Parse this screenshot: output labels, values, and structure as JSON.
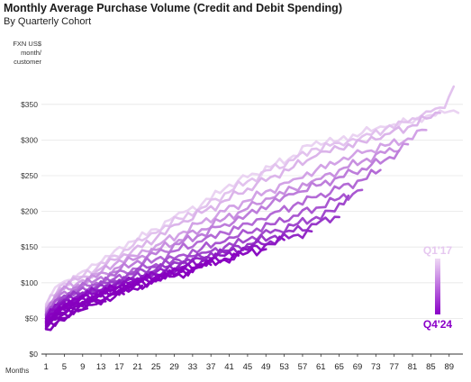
{
  "chart_data": {
    "type": "line",
    "title": "Monthly Average Purchase Volume (Credit and Debit Spending)",
    "subtitle": "By Quarterly Cohort",
    "ylabel_lines": [
      "FXN US$",
      "month/",
      "customer"
    ],
    "xlabel": "Months",
    "yticks": [
      "$0",
      "$50",
      "$100",
      "$150",
      "$200",
      "$250",
      "$300",
      "$350"
    ],
    "ytick_values": [
      0,
      50,
      100,
      150,
      200,
      250,
      300,
      350
    ],
    "xticks": [
      "1",
      "5",
      "9",
      "13",
      "17",
      "21",
      "25",
      "29",
      "33",
      "37",
      "41",
      "45",
      "49",
      "53",
      "57",
      "61",
      "65",
      "69",
      "73",
      "77",
      "81",
      "85",
      "89"
    ],
    "xtick_values": [
      1,
      5,
      9,
      13,
      17,
      21,
      25,
      29,
      33,
      37,
      41,
      45,
      49,
      53,
      57,
      61,
      65,
      69,
      73,
      77,
      81,
      85,
      89
    ],
    "xlim": [
      0,
      92
    ],
    "ylim": [
      0,
      375
    ],
    "legend": {
      "top_label": "Q1'17",
      "bottom_label": "Q4'24",
      "top_color": "#e6c8f0",
      "bottom_color": "#8a00c8",
      "placement": "right"
    },
    "series": [
      {
        "color": "#ead3f2",
        "points": [
          [
            1,
            70
          ],
          [
            4,
            98
          ],
          [
            8,
            112
          ],
          [
            12,
            125
          ],
          [
            16,
            145
          ],
          [
            20,
            158
          ],
          [
            25,
            175
          ],
          [
            30,
            198
          ],
          [
            35,
            210
          ],
          [
            40,
            232
          ],
          [
            45,
            248
          ],
          [
            50,
            262
          ],
          [
            55,
            278
          ],
          [
            60,
            298
          ],
          [
            65,
            300
          ],
          [
            70,
            310
          ],
          [
            75,
            318
          ],
          [
            80,
            325
          ],
          [
            85,
            335
          ],
          [
            89,
            340
          ],
          [
            91,
            338
          ]
        ]
      },
      {
        "color": "#e2c2ee",
        "points": [
          [
            1,
            68
          ],
          [
            4,
            95
          ],
          [
            8,
            108
          ],
          [
            12,
            120
          ],
          [
            16,
            138
          ],
          [
            20,
            152
          ],
          [
            25,
            170
          ],
          [
            30,
            190
          ],
          [
            35,
            205
          ],
          [
            40,
            225
          ],
          [
            45,
            242
          ],
          [
            50,
            258
          ],
          [
            55,
            272
          ],
          [
            60,
            288
          ],
          [
            65,
            296
          ],
          [
            70,
            305
          ],
          [
            75,
            315
          ],
          [
            80,
            325
          ],
          [
            84,
            340
          ],
          [
            88,
            345
          ],
          [
            90,
            375
          ]
        ]
      },
      {
        "color": "#dbb4ea",
        "points": [
          [
            1,
            66
          ],
          [
            4,
            92
          ],
          [
            8,
            104
          ],
          [
            12,
            116
          ],
          [
            16,
            132
          ],
          [
            20,
            146
          ],
          [
            25,
            162
          ],
          [
            30,
            182
          ],
          [
            35,
            198
          ],
          [
            40,
            215
          ],
          [
            45,
            232
          ],
          [
            50,
            248
          ],
          [
            55,
            262
          ],
          [
            60,
            278
          ],
          [
            65,
            288
          ],
          [
            70,
            298
          ],
          [
            75,
            308
          ],
          [
            80,
            318
          ],
          [
            84,
            330
          ],
          [
            87,
            338
          ]
        ]
      },
      {
        "color": "#d2a2e6",
        "points": [
          [
            1,
            64
          ],
          [
            4,
            89
          ],
          [
            8,
            100
          ],
          [
            12,
            112
          ],
          [
            16,
            126
          ],
          [
            20,
            138
          ],
          [
            25,
            152
          ],
          [
            30,
            168
          ],
          [
            35,
            184
          ],
          [
            40,
            200
          ],
          [
            45,
            215
          ],
          [
            50,
            230
          ],
          [
            55,
            245
          ],
          [
            60,
            258
          ],
          [
            65,
            270
          ],
          [
            70,
            282
          ],
          [
            75,
            292
          ],
          [
            80,
            302
          ],
          [
            84,
            314
          ]
        ]
      },
      {
        "color": "#c890e0",
        "points": [
          [
            1,
            62
          ],
          [
            4,
            86
          ],
          [
            8,
            97
          ],
          [
            12,
            108
          ],
          [
            16,
            120
          ],
          [
            20,
            132
          ],
          [
            25,
            146
          ],
          [
            30,
            160
          ],
          [
            35,
            175
          ],
          [
            40,
            190
          ],
          [
            45,
            204
          ],
          [
            50,
            218
          ],
          [
            55,
            232
          ],
          [
            60,
            245
          ],
          [
            65,
            258
          ],
          [
            70,
            270
          ],
          [
            75,
            282
          ],
          [
            80,
            294
          ]
        ]
      },
      {
        "color": "#bd7ddb",
        "points": [
          [
            1,
            60
          ],
          [
            4,
            83
          ],
          [
            8,
            94
          ],
          [
            12,
            104
          ],
          [
            16,
            115
          ],
          [
            20,
            126
          ],
          [
            25,
            140
          ],
          [
            30,
            154
          ],
          [
            35,
            168
          ],
          [
            40,
            182
          ],
          [
            45,
            196
          ],
          [
            50,
            210
          ],
          [
            55,
            224
          ],
          [
            60,
            236
          ],
          [
            65,
            248
          ],
          [
            70,
            260
          ],
          [
            75,
            272
          ],
          [
            78,
            285
          ]
        ]
      },
      {
        "color": "#b36ad6",
        "points": [
          [
            1,
            58
          ],
          [
            4,
            80
          ],
          [
            8,
            91
          ],
          [
            12,
            100
          ],
          [
            16,
            110
          ],
          [
            20,
            120
          ],
          [
            25,
            133
          ],
          [
            30,
            146
          ],
          [
            35,
            158
          ],
          [
            40,
            170
          ],
          [
            45,
            183
          ],
          [
            50,
            196
          ],
          [
            55,
            208
          ],
          [
            60,
            220
          ],
          [
            65,
            232
          ],
          [
            70,
            244
          ],
          [
            74,
            258
          ]
        ]
      },
      {
        "color": "#a957d1",
        "points": [
          [
            1,
            56
          ],
          [
            4,
            78
          ],
          [
            8,
            88
          ],
          [
            12,
            97
          ],
          [
            16,
            106
          ],
          [
            20,
            115
          ],
          [
            25,
            126
          ],
          [
            30,
            138
          ],
          [
            35,
            148
          ],
          [
            40,
            158
          ],
          [
            45,
            170
          ],
          [
            50,
            182
          ],
          [
            55,
            194
          ],
          [
            60,
            205
          ],
          [
            65,
            218
          ],
          [
            70,
            230
          ]
        ]
      },
      {
        "color": "#a048cd",
        "points": [
          [
            1,
            55
          ],
          [
            4,
            76
          ],
          [
            8,
            86
          ],
          [
            12,
            94
          ],
          [
            16,
            103
          ],
          [
            20,
            112
          ],
          [
            25,
            122
          ],
          [
            30,
            132
          ],
          [
            35,
            142
          ],
          [
            40,
            150
          ],
          [
            45,
            160
          ],
          [
            50,
            170
          ],
          [
            55,
            180
          ],
          [
            60,
            192
          ],
          [
            64,
            200
          ],
          [
            67,
            222
          ]
        ]
      },
      {
        "color": "#9838c9",
        "points": [
          [
            1,
            54
          ],
          [
            4,
            74
          ],
          [
            8,
            84
          ],
          [
            12,
            92
          ],
          [
            16,
            100
          ],
          [
            20,
            108
          ],
          [
            25,
            118
          ],
          [
            30,
            127
          ],
          [
            35,
            136
          ],
          [
            40,
            145
          ],
          [
            45,
            154
          ],
          [
            50,
            163
          ],
          [
            55,
            172
          ],
          [
            60,
            182
          ],
          [
            65,
            192
          ]
        ]
      },
      {
        "color": "#9228c6",
        "points": [
          [
            1,
            52
          ],
          [
            4,
            72
          ],
          [
            8,
            82
          ],
          [
            12,
            90
          ],
          [
            16,
            98
          ],
          [
            20,
            106
          ],
          [
            25,
            115
          ],
          [
            30,
            124
          ],
          [
            35,
            133
          ],
          [
            40,
            142
          ],
          [
            45,
            150
          ],
          [
            50,
            158
          ],
          [
            55,
            166
          ],
          [
            59,
            172
          ]
        ]
      },
      {
        "color": "#8c18c3",
        "points": [
          [
            1,
            50
          ],
          [
            4,
            70
          ],
          [
            8,
            80
          ],
          [
            12,
            88
          ],
          [
            16,
            96
          ],
          [
            20,
            104
          ],
          [
            25,
            112
          ],
          [
            30,
            121
          ],
          [
            35,
            130
          ],
          [
            40,
            138
          ],
          [
            45,
            146
          ],
          [
            50,
            154
          ],
          [
            53,
            160
          ]
        ]
      },
      {
        "color": "#8a0cc2",
        "points": [
          [
            1,
            50
          ],
          [
            4,
            68
          ],
          [
            8,
            78
          ],
          [
            12,
            86
          ],
          [
            16,
            94
          ],
          [
            20,
            102
          ],
          [
            25,
            110
          ],
          [
            30,
            118
          ],
          [
            35,
            126
          ],
          [
            40,
            134
          ],
          [
            45,
            142
          ],
          [
            49,
            147
          ]
        ]
      },
      {
        "color": "#8900c1",
        "points": [
          [
            1,
            48
          ],
          [
            4,
            66
          ],
          [
            8,
            76
          ],
          [
            12,
            84
          ],
          [
            16,
            92
          ],
          [
            20,
            100
          ],
          [
            25,
            108
          ],
          [
            30,
            116
          ],
          [
            35,
            124
          ],
          [
            40,
            132
          ],
          [
            43,
            138
          ]
        ]
      },
      {
        "color": "#8800c0",
        "points": [
          [
            1,
            46
          ],
          [
            4,
            64
          ],
          [
            8,
            74
          ],
          [
            12,
            82
          ],
          [
            16,
            90
          ],
          [
            20,
            98
          ],
          [
            25,
            106
          ],
          [
            30,
            114
          ],
          [
            35,
            122
          ],
          [
            37,
            125
          ]
        ]
      },
      {
        "color": "#8700bf",
        "points": [
          [
            1,
            45
          ],
          [
            4,
            62
          ],
          [
            8,
            72
          ],
          [
            12,
            80
          ],
          [
            16,
            88
          ],
          [
            20,
            96
          ],
          [
            25,
            104
          ],
          [
            30,
            112
          ],
          [
            32,
            115
          ]
        ]
      },
      {
        "color": "#8600be",
        "points": [
          [
            1,
            44
          ],
          [
            4,
            60
          ],
          [
            8,
            70
          ],
          [
            12,
            78
          ],
          [
            16,
            86
          ],
          [
            20,
            94
          ],
          [
            25,
            102
          ],
          [
            27,
            106
          ]
        ]
      },
      {
        "color": "#8500bd",
        "points": [
          [
            1,
            42
          ],
          [
            4,
            58
          ],
          [
            8,
            68
          ],
          [
            12,
            76
          ],
          [
            16,
            84
          ],
          [
            20,
            92
          ],
          [
            22,
            96
          ]
        ]
      },
      {
        "color": "#8400bc",
        "points": [
          [
            1,
            40
          ],
          [
            4,
            55
          ],
          [
            8,
            65
          ],
          [
            12,
            73
          ],
          [
            16,
            80
          ],
          [
            18,
            84
          ]
        ]
      },
      {
        "color": "#8300bb",
        "points": [
          [
            1,
            38
          ],
          [
            4,
            52
          ],
          [
            8,
            62
          ],
          [
            12,
            70
          ],
          [
            14,
            74
          ]
        ]
      },
      {
        "color": "#8200ba",
        "points": [
          [
            1,
            36
          ],
          [
            4,
            50
          ],
          [
            8,
            60
          ],
          [
            10,
            64
          ]
        ]
      },
      {
        "color": "#8100b9",
        "points": [
          [
            1,
            35
          ],
          [
            4,
            48
          ],
          [
            6,
            54
          ]
        ]
      }
    ]
  }
}
